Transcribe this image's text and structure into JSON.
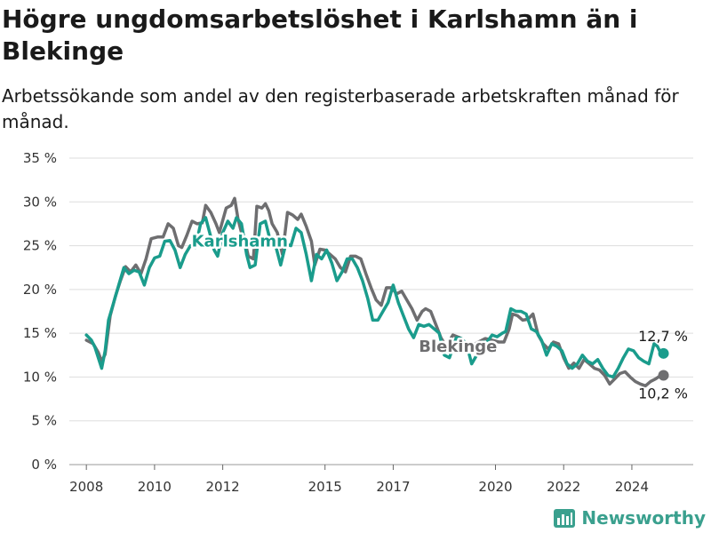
{
  "title": "Högre ungdomsarbetslöshet i Karlshamn än i Blekinge",
  "subtitle": "Arbetssökande som andel av den registerbaserade arbetskraften månad för månad.",
  "brand": "Newsworthy",
  "colors": {
    "karlshamn": "#1a9c8c",
    "blekinge": "#6e6e70",
    "grid": "#dddddd",
    "brand": "#3aa08e"
  },
  "chart_data": {
    "type": "line",
    "ylim": [
      0,
      35
    ],
    "yticks": [
      0,
      5,
      10,
      15,
      20,
      25,
      30,
      35
    ],
    "ytick_labels": [
      "0 %",
      "5 %",
      "10 %",
      "15 %",
      "20 %",
      "25 %",
      "30 %",
      "35 %"
    ],
    "xlim": [
      2007.5,
      2025.8
    ],
    "xticks": [
      2008,
      2010,
      2012,
      2015,
      2017,
      2020,
      2022,
      2024
    ],
    "xtick_labels": [
      "2008",
      "2010",
      "2012",
      "2015",
      "2017",
      "2020",
      "2022",
      "2024"
    ],
    "grid": true,
    "series": [
      {
        "name": "Blekinge",
        "color": "#6e6e70",
        "label_pos": [
          2018.9,
          13.5
        ],
        "end_label": "10,2 %",
        "points": [
          [
            2008.0,
            14.2
          ],
          [
            2008.2,
            13.8
          ],
          [
            2008.35,
            12.8
          ],
          [
            2008.45,
            11.8
          ],
          [
            2008.55,
            12.6
          ],
          [
            2008.7,
            17.0
          ],
          [
            2008.85,
            19.2
          ],
          [
            2009.0,
            21.0
          ],
          [
            2009.15,
            22.6
          ],
          [
            2009.3,
            22.0
          ],
          [
            2009.45,
            22.8
          ],
          [
            2009.6,
            21.8
          ],
          [
            2009.75,
            23.5
          ],
          [
            2009.9,
            25.8
          ],
          [
            2010.1,
            26.0
          ],
          [
            2010.25,
            26.0
          ],
          [
            2010.4,
            27.5
          ],
          [
            2010.55,
            27.0
          ],
          [
            2010.7,
            25.0
          ],
          [
            2010.8,
            24.8
          ],
          [
            2010.95,
            26.2
          ],
          [
            2011.1,
            27.8
          ],
          [
            2011.25,
            27.5
          ],
          [
            2011.4,
            27.6
          ],
          [
            2011.5,
            29.6
          ],
          [
            2011.65,
            28.8
          ],
          [
            2011.8,
            27.5
          ],
          [
            2011.9,
            26.5
          ],
          [
            2012.1,
            29.3
          ],
          [
            2012.25,
            29.6
          ],
          [
            2012.35,
            30.4
          ],
          [
            2012.45,
            28.0
          ],
          [
            2012.55,
            26.5
          ],
          [
            2012.65,
            25.5
          ],
          [
            2012.75,
            23.8
          ],
          [
            2012.9,
            23.5
          ],
          [
            2013.0,
            29.5
          ],
          [
            2013.15,
            29.3
          ],
          [
            2013.25,
            29.8
          ],
          [
            2013.35,
            29.0
          ],
          [
            2013.45,
            27.5
          ],
          [
            2013.6,
            26.5
          ],
          [
            2013.75,
            24.0
          ],
          [
            2013.9,
            28.8
          ],
          [
            2014.05,
            28.5
          ],
          [
            2014.2,
            28.0
          ],
          [
            2014.3,
            28.6
          ],
          [
            2014.45,
            27.2
          ],
          [
            2014.6,
            25.5
          ],
          [
            2014.7,
            22.8
          ],
          [
            2014.85,
            24.6
          ],
          [
            2015.0,
            24.5
          ],
          [
            2015.15,
            24.0
          ],
          [
            2015.3,
            23.5
          ],
          [
            2015.45,
            22.5
          ],
          [
            2015.6,
            22.0
          ],
          [
            2015.75,
            23.8
          ],
          [
            2015.9,
            23.8
          ],
          [
            2016.05,
            23.5
          ],
          [
            2016.2,
            21.8
          ],
          [
            2016.35,
            20.2
          ],
          [
            2016.5,
            18.8
          ],
          [
            2016.65,
            18.2
          ],
          [
            2016.8,
            20.2
          ],
          [
            2016.95,
            20.2
          ],
          [
            2017.1,
            19.5
          ],
          [
            2017.25,
            19.8
          ],
          [
            2017.4,
            18.8
          ],
          [
            2017.55,
            17.8
          ],
          [
            2017.7,
            16.5
          ],
          [
            2017.85,
            17.5
          ],
          [
            2017.95,
            17.8
          ],
          [
            2018.1,
            17.5
          ],
          [
            2018.25,
            16.0
          ],
          [
            2018.4,
            14.5
          ],
          [
            2018.55,
            13.5
          ],
          [
            2018.75,
            14.8
          ],
          [
            2018.95,
            14.5
          ],
          [
            2019.1,
            14.0
          ],
          [
            2019.3,
            13.6
          ],
          [
            2019.5,
            14.0
          ],
          [
            2019.7,
            14.4
          ],
          [
            2019.9,
            14.2
          ],
          [
            2020.1,
            14.0
          ],
          [
            2020.25,
            14.0
          ],
          [
            2020.4,
            15.5
          ],
          [
            2020.5,
            17.2
          ],
          [
            2020.65,
            17.0
          ],
          [
            2020.8,
            16.5
          ],
          [
            2020.95,
            16.6
          ],
          [
            2021.1,
            17.2
          ],
          [
            2021.25,
            14.8
          ],
          [
            2021.4,
            13.8
          ],
          [
            2021.55,
            13.2
          ],
          [
            2021.7,
            14.0
          ],
          [
            2021.85,
            13.8
          ],
          [
            2022.0,
            12.2
          ],
          [
            2022.15,
            11.0
          ],
          [
            2022.3,
            11.6
          ],
          [
            2022.45,
            11.0
          ],
          [
            2022.6,
            12.0
          ],
          [
            2022.75,
            11.5
          ],
          [
            2022.9,
            11.0
          ],
          [
            2023.05,
            10.8
          ],
          [
            2023.2,
            10.2
          ],
          [
            2023.35,
            9.2
          ],
          [
            2023.5,
            9.8
          ],
          [
            2023.65,
            10.4
          ],
          [
            2023.8,
            10.6
          ],
          [
            2023.95,
            10.0
          ],
          [
            2024.1,
            9.5
          ],
          [
            2024.25,
            9.2
          ],
          [
            2024.4,
            9.0
          ],
          [
            2024.55,
            9.5
          ],
          [
            2024.7,
            9.8
          ],
          [
            2024.85,
            10.2
          ]
        ]
      },
      {
        "name": "Karlshamn",
        "color": "#1a9c8c",
        "label_pos": [
          2012.5,
          25.5
        ],
        "end_label": "12,7 %",
        "points": [
          [
            2008.0,
            14.8
          ],
          [
            2008.15,
            14.2
          ],
          [
            2008.25,
            13.4
          ],
          [
            2008.35,
            12.2
          ],
          [
            2008.45,
            11.0
          ],
          [
            2008.55,
            13.0
          ],
          [
            2008.65,
            16.5
          ],
          [
            2008.8,
            18.5
          ],
          [
            2008.95,
            20.5
          ],
          [
            2009.1,
            22.5
          ],
          [
            2009.25,
            21.8
          ],
          [
            2009.4,
            22.2
          ],
          [
            2009.55,
            22.0
          ],
          [
            2009.7,
            20.5
          ],
          [
            2009.85,
            22.5
          ],
          [
            2010.0,
            23.6
          ],
          [
            2010.15,
            23.8
          ],
          [
            2010.3,
            25.5
          ],
          [
            2010.45,
            25.6
          ],
          [
            2010.6,
            24.5
          ],
          [
            2010.75,
            22.5
          ],
          [
            2010.9,
            24.0
          ],
          [
            2011.05,
            25.0
          ],
          [
            2011.2,
            24.8
          ],
          [
            2011.35,
            27.5
          ],
          [
            2011.5,
            28.2
          ],
          [
            2011.65,
            26.0
          ],
          [
            2011.75,
            24.5
          ],
          [
            2011.85,
            23.8
          ],
          [
            2012.0,
            26.5
          ],
          [
            2012.15,
            27.8
          ],
          [
            2012.3,
            27.0
          ],
          [
            2012.4,
            28.2
          ],
          [
            2012.55,
            27.5
          ],
          [
            2012.7,
            24.0
          ],
          [
            2012.8,
            22.5
          ],
          [
            2012.95,
            22.8
          ],
          [
            2013.1,
            27.5
          ],
          [
            2013.25,
            27.8
          ],
          [
            2013.4,
            25.5
          ],
          [
            2013.55,
            25.0
          ],
          [
            2013.7,
            22.8
          ],
          [
            2013.85,
            25.2
          ],
          [
            2014.0,
            25.0
          ],
          [
            2014.15,
            27.0
          ],
          [
            2014.3,
            26.5
          ],
          [
            2014.45,
            24.0
          ],
          [
            2014.6,
            21.0
          ],
          [
            2014.75,
            24.0
          ],
          [
            2014.9,
            23.5
          ],
          [
            2015.05,
            24.5
          ],
          [
            2015.2,
            23.0
          ],
          [
            2015.35,
            21.0
          ],
          [
            2015.5,
            22.0
          ],
          [
            2015.65,
            23.5
          ],
          [
            2015.8,
            23.5
          ],
          [
            2015.95,
            22.5
          ],
          [
            2016.1,
            21.0
          ],
          [
            2016.25,
            19.0
          ],
          [
            2016.4,
            16.5
          ],
          [
            2016.55,
            16.5
          ],
          [
            2016.7,
            17.5
          ],
          [
            2016.85,
            18.5
          ],
          [
            2017.0,
            20.5
          ],
          [
            2017.15,
            18.5
          ],
          [
            2017.3,
            17.0
          ],
          [
            2017.45,
            15.5
          ],
          [
            2017.6,
            14.5
          ],
          [
            2017.75,
            16.0
          ],
          [
            2017.9,
            15.8
          ],
          [
            2018.05,
            16.0
          ],
          [
            2018.2,
            15.5
          ],
          [
            2018.35,
            15.0
          ],
          [
            2018.5,
            12.5
          ],
          [
            2018.65,
            12.2
          ],
          [
            2018.85,
            14.5
          ],
          [
            2019.0,
            14.4
          ],
          [
            2019.15,
            13.8
          ],
          [
            2019.3,
            11.5
          ],
          [
            2019.45,
            12.5
          ],
          [
            2019.6,
            14.0
          ],
          [
            2019.75,
            14.0
          ],
          [
            2019.9,
            14.8
          ],
          [
            2020.05,
            14.6
          ],
          [
            2020.2,
            15.0
          ],
          [
            2020.3,
            15.2
          ],
          [
            2020.45,
            17.8
          ],
          [
            2020.6,
            17.5
          ],
          [
            2020.75,
            17.5
          ],
          [
            2020.9,
            17.2
          ],
          [
            2021.05,
            15.5
          ],
          [
            2021.2,
            15.2
          ],
          [
            2021.35,
            14.2
          ],
          [
            2021.5,
            12.5
          ],
          [
            2021.65,
            13.8
          ],
          [
            2021.8,
            13.5
          ],
          [
            2021.95,
            13.0
          ],
          [
            2022.1,
            11.5
          ],
          [
            2022.25,
            11.0
          ],
          [
            2022.4,
            11.5
          ],
          [
            2022.55,
            12.5
          ],
          [
            2022.7,
            11.8
          ],
          [
            2022.85,
            11.5
          ],
          [
            2023.0,
            12.0
          ],
          [
            2023.15,
            11.0
          ],
          [
            2023.3,
            10.2
          ],
          [
            2023.45,
            10.0
          ],
          [
            2023.6,
            11.0
          ],
          [
            2023.75,
            12.2
          ],
          [
            2023.9,
            13.2
          ],
          [
            2024.05,
            13.0
          ],
          [
            2024.2,
            12.2
          ],
          [
            2024.35,
            11.8
          ],
          [
            2024.5,
            11.5
          ],
          [
            2024.65,
            13.8
          ],
          [
            2024.75,
            13.5
          ],
          [
            2024.85,
            12.7
          ]
        ]
      }
    ]
  }
}
